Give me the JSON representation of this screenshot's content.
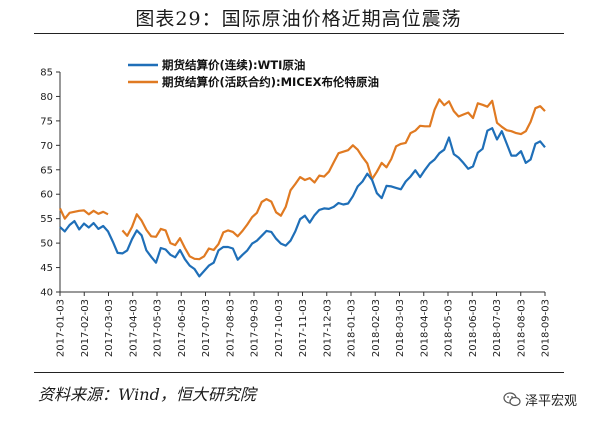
{
  "header": {
    "title": "图表29：国际原油价格近期高位震荡"
  },
  "footer": {
    "source": "资料来源：Wind，恒大研究院",
    "watermark": "泽平宏观"
  },
  "colors": {
    "wti": "#1f6fb8",
    "brent": "#e07a22",
    "axis": "#333333"
  },
  "chart_data": {
    "type": "line",
    "title": "",
    "xlabel": "",
    "ylabel": "",
    "ylim": [
      40,
      85
    ],
    "yticks": [
      40,
      45,
      50,
      55,
      60,
      65,
      70,
      75,
      80,
      85
    ],
    "xticks": [
      "2017-01-03",
      "2017-02-03",
      "2017-03-03",
      "2017-04-03",
      "2017-05-03",
      "2017-06-03",
      "2017-07-03",
      "2017-08-03",
      "2017-09-03",
      "2017-10-03",
      "2017-11-03",
      "2017-12-03",
      "2018-01-03",
      "2018-02-03",
      "2018-03-03",
      "2018-04-03",
      "2018-05-03",
      "2018-06-03",
      "2018-07-03",
      "2018-08-03",
      "2018-09-03"
    ],
    "grid": false,
    "legend": "top-left",
    "series": [
      {
        "name": "期货结算价(连续):WTI原油",
        "values": [
          53.3,
          52.4,
          53.7,
          54.5,
          52.8,
          54.0,
          53.2,
          54.1,
          52.9,
          53.5,
          52.4,
          50.3,
          48.0,
          47.9,
          48.5,
          50.8,
          52.6,
          51.6,
          48.5,
          47.2,
          46.0,
          49.0,
          48.7,
          47.6,
          47.1,
          48.6,
          46.7,
          45.4,
          44.7,
          43.2,
          44.3,
          45.4,
          46.0,
          48.5,
          49.2,
          49.2,
          48.9,
          46.6,
          47.6,
          48.5,
          49.9,
          50.5,
          51.5,
          52.5,
          52.3,
          50.9,
          49.9,
          49.5,
          50.5,
          52.4,
          54.9,
          55.6,
          54.2,
          55.7,
          56.8,
          57.1,
          57.0,
          57.4,
          58.2,
          57.9,
          58.1,
          59.6,
          61.6,
          62.6,
          64.2,
          62.9,
          60.2,
          59.2,
          61.7,
          61.6,
          61.3,
          61.0,
          62.6,
          63.6,
          64.9,
          63.5,
          65.0,
          66.3,
          67.1,
          68.4,
          69.1,
          71.6,
          68.2,
          67.5,
          66.4,
          65.2,
          65.7,
          68.5,
          69.3,
          73.0,
          73.5,
          71.2,
          72.9,
          70.4,
          67.9,
          67.9,
          68.8,
          66.4,
          67.1,
          70.3,
          70.8,
          69.6
        ]
      },
      {
        "name": "期货结算价(活跃合约):MICEX布伦特原油",
        "values": [
          57.1,
          55.0,
          56.2,
          56.4,
          56.6,
          56.7,
          55.9,
          56.6,
          56.0,
          56.4,
          55.9,
          null,
          null,
          52.6,
          51.5,
          53.3,
          55.9,
          54.6,
          52.7,
          51.4,
          51.3,
          52.9,
          52.6,
          50.0,
          49.6,
          51.0,
          49.0,
          47.3,
          46.8,
          46.7,
          47.3,
          48.9,
          48.6,
          49.8,
          52.2,
          52.6,
          52.3,
          51.4,
          52.5,
          53.8,
          55.3,
          56.2,
          58.4,
          59.0,
          58.5,
          56.3,
          55.6,
          57.4,
          60.8,
          62.1,
          63.5,
          62.9,
          63.3,
          62.4,
          63.8,
          63.6,
          64.6,
          66.5,
          68.4,
          68.7,
          69.0,
          70.0,
          69.1,
          67.6,
          66.3,
          63.1,
          64.6,
          66.4,
          65.5,
          67.2,
          69.8,
          70.3,
          70.5,
          72.5,
          73.0,
          74.0,
          73.9,
          73.9,
          77.3,
          79.4,
          78.2,
          79.0,
          77.0,
          75.9,
          76.3,
          76.7,
          75.6,
          78.6,
          78.3,
          77.9,
          79.1,
          74.6,
          73.8,
          73.1,
          72.9,
          72.5,
          72.3,
          72.9,
          74.8,
          77.6,
          78.0,
          77.0
        ]
      }
    ]
  }
}
